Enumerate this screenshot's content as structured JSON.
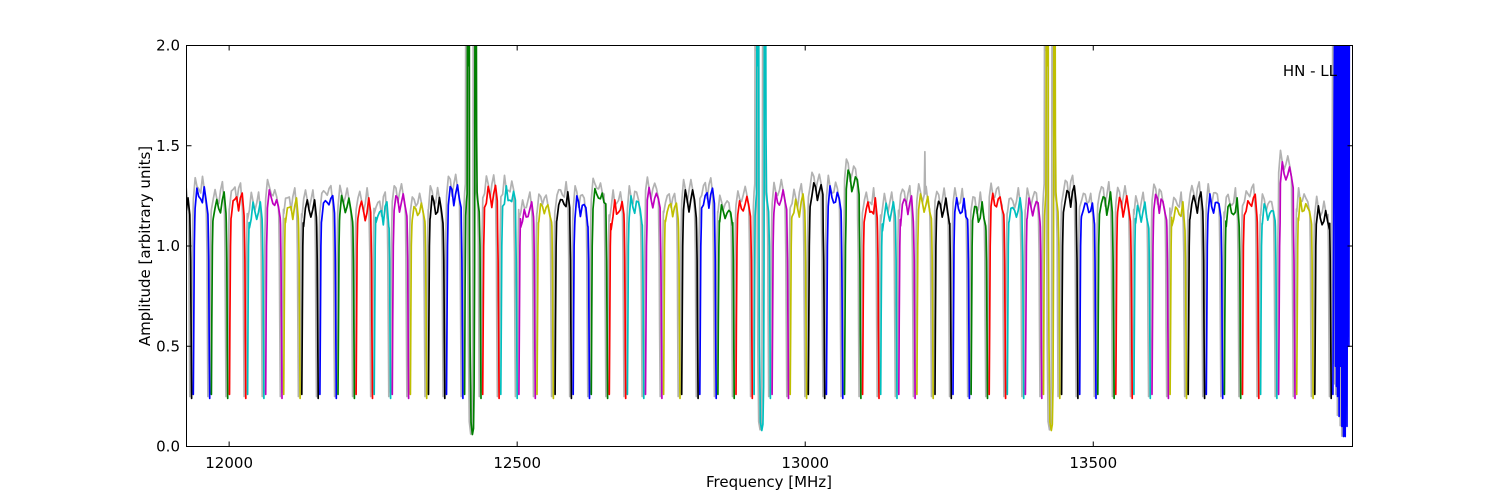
{
  "figure": {
    "background": "#ffffff"
  },
  "chart_data": {
    "type": "line",
    "title": "",
    "annotation": {
      "text": "HN - LL",
      "position": "top-right"
    },
    "xlabel": "Frequency [MHz]",
    "ylabel": "Amplitude [arbitrary units]",
    "xlim": [
      11926,
      13950
    ],
    "ylim": [
      0.0,
      2.0
    ],
    "xticks": [
      12000,
      12500,
      13000,
      13500
    ],
    "yticks": [
      0.0,
      0.5,
      1.0,
      1.5,
      2.0
    ],
    "grid": false,
    "tick_direction": "in",
    "colors": {
      "b": "#0000ff",
      "g": "#007f00",
      "r": "#ff0000",
      "c": "#00bfbf",
      "m": "#bf00bf",
      "y": "#bfbf00",
      "k": "#000000"
    },
    "reference_color": "#b2b2b2",
    "color_cycle": [
      "b",
      "g",
      "r",
      "c",
      "m",
      "y",
      "k"
    ],
    "windows": {
      "count": 64,
      "first_center_mhz": 11952,
      "spacing_mhz": 31.4,
      "width_mhz": 28.4,
      "base_amplitude": 0.26,
      "typical_top_range": [
        1.1,
        1.33
      ],
      "left_edge_partial": {
        "index": -1,
        "color": "k"
      },
      "peaks": [
        1.3,
        1.27,
        1.28,
        1.22,
        1.28,
        1.24,
        1.23,
        1.27,
        1.27,
        1.24,
        1.22,
        1.26,
        1.22,
        1.25,
        1.31,
        1.26,
        1.31,
        1.3,
        1.22,
        1.24,
        1.27,
        1.25,
        1.3,
        1.23,
        1.25,
        1.3,
        1.24,
        1.28,
        1.3,
        1.22,
        1.25,
        1.22,
        1.28,
        1.26,
        1.33,
        1.3,
        1.38,
        1.24,
        1.22,
        1.25,
        1.26,
        1.25,
        1.24,
        1.22,
        1.28,
        1.24,
        1.26,
        1.25,
        1.3,
        1.24,
        1.27,
        1.25,
        1.23,
        1.26,
        1.22,
        1.28,
        1.26,
        1.24,
        1.27,
        1.22,
        1.42,
        1.24,
        1.2,
        1.26
      ],
      "anomalies": [
        {
          "index": 15,
          "center_mhz": 12423,
          "color": "g",
          "spike_top": 2.0,
          "dip_bottom": 0.06,
          "clipped_at_top": true
        },
        {
          "index": 31,
          "center_mhz": 12925,
          "color": "c",
          "spike_top": 2.0,
          "dip_bottom": 0.08,
          "clipped_at_top": true
        },
        {
          "index": 47,
          "center_mhz": 13428,
          "color": "y",
          "spike_top": 2.0,
          "dip_bottom": 0.08,
          "clipped_at_top": true
        },
        {
          "index": 63,
          "center_mhz": 13930,
          "color": "b",
          "spike_top": 2.0,
          "dip_bottom": 0.05,
          "clipped_at_top": true
        }
      ],
      "gray_reference": {
        "color": "#b2b2b2",
        "offset_mhz": -3,
        "amp_scale": 1.04,
        "extra_spike": {
          "index": 40,
          "center_mhz": 13208,
          "top": 1.47
        }
      }
    }
  }
}
